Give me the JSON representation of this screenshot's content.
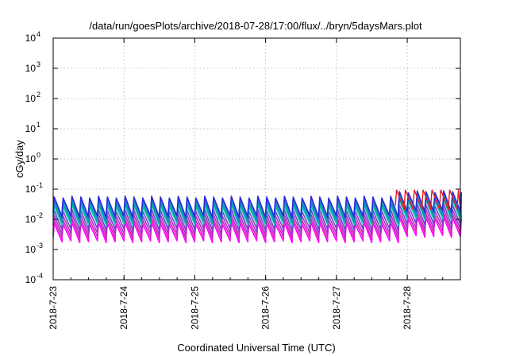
{
  "chart_data": {
    "type": "line",
    "title": "/data/run/goesPlots/archive/2018-07-28/17:00/flux/../bryn/5daysMars.plot",
    "xlabel": "Coordinated Universal Time (UTC)",
    "ylabel": "cGy/day",
    "yscale": "log",
    "ylim": [
      0.0001,
      10000
    ],
    "y_ticks": [
      {
        "base": "10",
        "exp": "-4"
      },
      {
        "base": "10",
        "exp": "-3"
      },
      {
        "base": "10",
        "exp": "-2"
      },
      {
        "base": "10",
        "exp": "-1"
      },
      {
        "base": "10",
        "exp": "0"
      },
      {
        "base": "10",
        "exp": "1"
      },
      {
        "base": "10",
        "exp": "2"
      },
      {
        "base": "10",
        "exp": "3"
      },
      {
        "base": "10",
        "exp": "4"
      }
    ],
    "xlim": [
      "2018-07-23T00:00",
      "2018-07-28T18:00"
    ],
    "x_ticks": [
      "2018-7-23",
      "2018-7-24",
      "2018-7-25",
      "2018-7-26",
      "2018-7-27",
      "2018-7-28"
    ],
    "grid": true,
    "legend": "none",
    "pattern": {
      "description": "periodic sawtooth dose rate, roughly 8 cycles per day",
      "cycles_per_day": 8,
      "series_levels_peak_to_trough": [
        {
          "color": "#2b2bd9",
          "peak": 0.055,
          "trough": 0.012
        },
        {
          "color": "#1f7fd0",
          "peak": 0.045,
          "trough": 0.01
        },
        {
          "color": "#00a0a0",
          "peak": 0.035,
          "trough": 0.008
        },
        {
          "color": "#18c8b0",
          "peak": 0.028,
          "trough": 0.0065
        },
        {
          "color": "#7a3fd0",
          "peak": 0.02,
          "trough": 0.0045
        },
        {
          "color": "#b030c8",
          "peak": 0.014,
          "trough": 0.0032
        },
        {
          "color": "#d820b8",
          "peak": 0.01,
          "trough": 0.0024
        },
        {
          "color": "#ff00ff",
          "peak": 0.0075,
          "trough": 0.0018
        }
      ],
      "late_enhancement": {
        "start": "2018-07-27T20:00",
        "factor": 1.5,
        "red_series_color": "#e81c1c"
      }
    }
  }
}
